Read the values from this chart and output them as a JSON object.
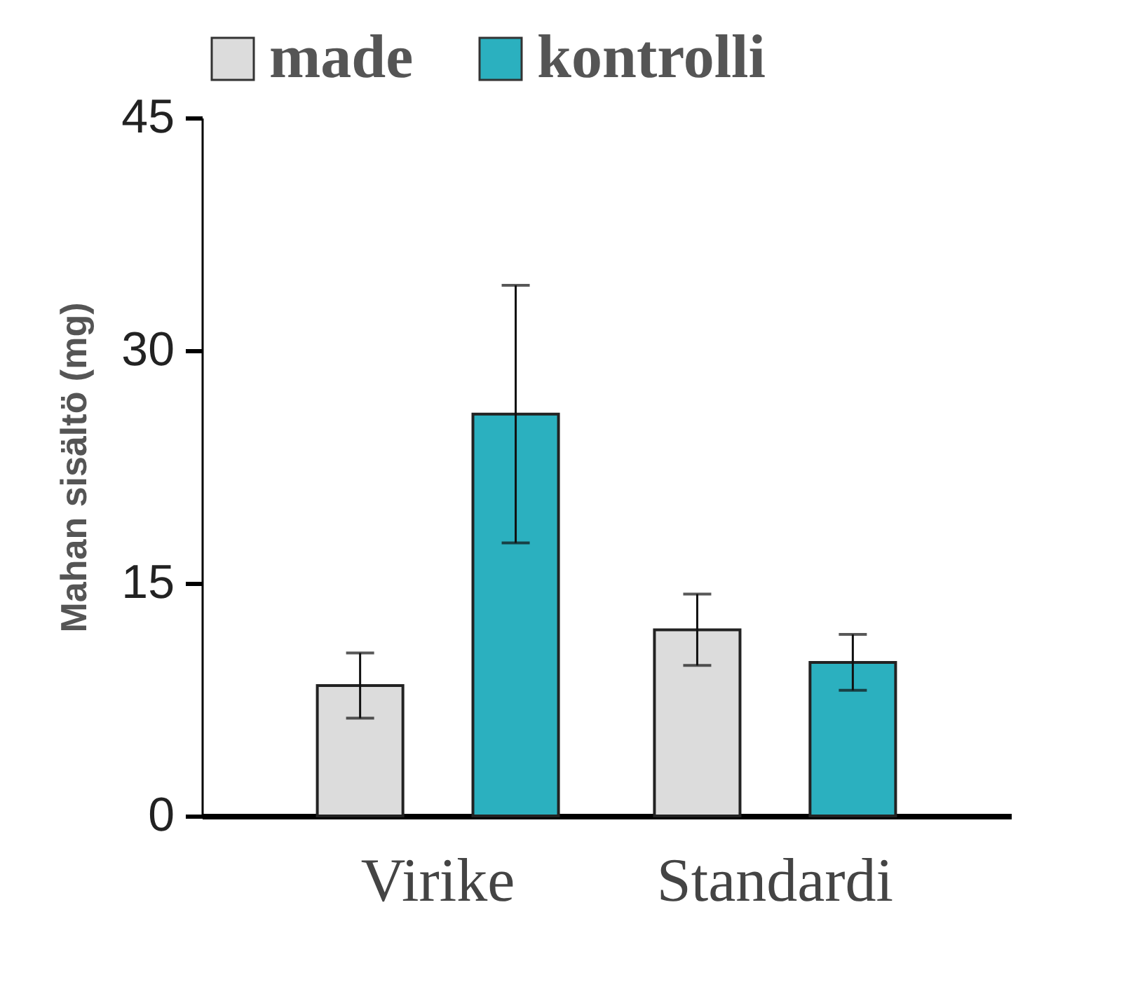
{
  "chart_data": {
    "type": "bar",
    "ylabel": "Mahan sisältö (mg)",
    "categories": [
      "Virike",
      "Standardi"
    ],
    "series": [
      {
        "name": "made",
        "color": "#dcdcdc",
        "values": [
          8.4,
          12.0
        ],
        "errors": [
          2.1,
          2.3
        ]
      },
      {
        "name": "kontrolli",
        "color": "#2bb0bf",
        "values": [
          25.9,
          9.9
        ],
        "errors": [
          8.3,
          1.8
        ]
      }
    ],
    "ylim": [
      0,
      45
    ],
    "yticks": [
      0,
      15,
      30,
      45
    ],
    "grid": false,
    "legend": "top"
  }
}
